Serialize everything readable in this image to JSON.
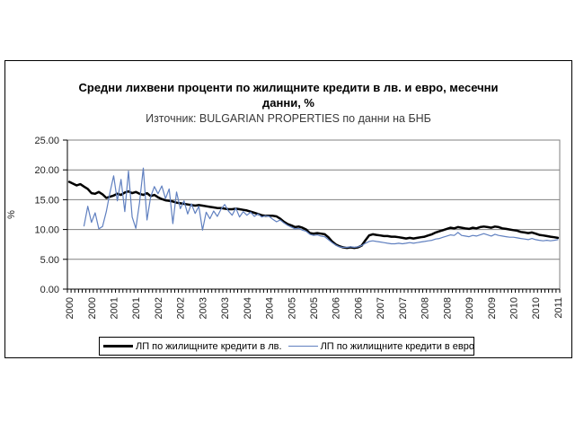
{
  "figure": {
    "title_line1": "Средни лихвени проценти по жилищните кредити в лв. и евро, месечни",
    "title_line2": "данни, %",
    "subtitle": "Източник: BULGARIAN PROPERTIES по данни на БНБ"
  },
  "chart_data": {
    "type": "line",
    "title": "Средни лихвени проценти по жилищните кредити в лв. и евро, месечни данни, %",
    "subtitle": "Източник: BULGARIAN PROPERTIES по данни на БНБ",
    "ylabel": "%",
    "ylim": [
      0,
      25
    ],
    "y_tick_step": 5,
    "y_tick_labels": [
      "25.00",
      "20.00",
      "15.00",
      "10.00",
      "5.00",
      "0.00"
    ],
    "x_unit": "month",
    "x_range": "2000-01 to 2011-01",
    "x_label_every_months": 6,
    "x_tick_labels": [
      "2000",
      "2000",
      "2001",
      "2001",
      "2002",
      "2002",
      "2003",
      "2003",
      "2004",
      "2004",
      "2005",
      "2005",
      "2006",
      "2006",
      "2007",
      "2007",
      "2008",
      "2008",
      "2009",
      "2009",
      "2010",
      "2010",
      "2011"
    ],
    "grid": true,
    "grid_color": "#808080",
    "legend_position": "bottom",
    "series": [
      {
        "name": "ЛП по жилищните кредити в лв.",
        "color": "#000000",
        "width": 2.5,
        "values": [
          18.0,
          17.7,
          17.4,
          17.6,
          17.2,
          16.8,
          16.1,
          16.0,
          16.3,
          15.9,
          15.3,
          15.5,
          15.7,
          16.0,
          15.8,
          16.2,
          16.4,
          16.1,
          16.3,
          16.0,
          15.8,
          16.1,
          15.6,
          15.8,
          15.4,
          15.1,
          14.9,
          14.8,
          14.7,
          14.5,
          14.4,
          14.3,
          14.2,
          14.1,
          14.0,
          14.1,
          14.0,
          13.9,
          13.8,
          13.7,
          13.6,
          13.6,
          13.5,
          13.4,
          13.4,
          13.5,
          13.4,
          13.3,
          13.2,
          13.0,
          12.8,
          12.6,
          12.4,
          12.3,
          12.3,
          12.3,
          12.2,
          11.8,
          11.3,
          10.9,
          10.7,
          10.4,
          10.5,
          10.3,
          10.0,
          9.4,
          9.3,
          9.4,
          9.3,
          9.2,
          8.7,
          8.0,
          7.5,
          7.2,
          7.0,
          6.9,
          7.0,
          6.9,
          7.0,
          7.3,
          8.2,
          9.0,
          9.2,
          9.1,
          9.0,
          8.9,
          8.9,
          8.8,
          8.8,
          8.7,
          8.6,
          8.5,
          8.6,
          8.5,
          8.6,
          8.7,
          8.8,
          9.0,
          9.2,
          9.5,
          9.7,
          9.9,
          10.1,
          10.3,
          10.2,
          10.4,
          10.3,
          10.2,
          10.1,
          10.3,
          10.2,
          10.4,
          10.5,
          10.4,
          10.3,
          10.5,
          10.4,
          10.2,
          10.1,
          10.0,
          9.9,
          9.8,
          9.6,
          9.5,
          9.4,
          9.5,
          9.3,
          9.1,
          9.0,
          8.9,
          8.8,
          8.7,
          8.6
        ]
      },
      {
        "name": "ЛП по жилищните кредити в евро",
        "color": "#6080C0",
        "width": 1.2,
        "values": [
          null,
          null,
          null,
          null,
          10.6,
          13.9,
          11.2,
          12.8,
          10.1,
          10.5,
          13.0,
          16.2,
          19.0,
          14.8,
          18.4,
          13.0,
          19.8,
          12.1,
          10.2,
          14.5,
          20.3,
          11.6,
          15.5,
          17.2,
          16.0,
          17.3,
          15.2,
          16.8,
          11.0,
          16.3,
          13.5,
          14.8,
          12.6,
          14.3,
          12.7,
          13.9,
          9.9,
          12.9,
          11.8,
          13.1,
          12.2,
          13.4,
          14.2,
          13.1,
          12.4,
          13.6,
          12.1,
          13.0,
          12.4,
          12.9,
          12.2,
          12.6,
          12.1,
          12.3,
          12.2,
          11.7,
          11.3,
          11.6,
          11.1,
          10.7,
          10.4,
          10.1,
          10.2,
          9.9,
          9.7,
          9.2,
          9.0,
          9.1,
          8.9,
          8.8,
          8.3,
          7.8,
          7.4,
          7.1,
          7.0,
          7.0,
          7.1,
          7.0,
          7.1,
          7.3,
          7.7,
          8.0,
          8.1,
          8.0,
          7.9,
          7.8,
          7.7,
          7.6,
          7.6,
          7.7,
          7.6,
          7.7,
          7.8,
          7.7,
          7.8,
          7.9,
          8.0,
          8.1,
          8.2,
          8.4,
          8.5,
          8.7,
          8.9,
          9.1,
          9.0,
          9.5,
          9.0,
          8.9,
          8.8,
          9.0,
          8.9,
          9.1,
          9.3,
          9.1,
          8.9,
          9.2,
          9.0,
          8.9,
          8.8,
          8.7,
          8.7,
          8.6,
          8.5,
          8.4,
          8.3,
          8.5,
          8.3,
          8.2,
          8.1,
          8.2,
          8.1,
          8.2,
          8.3
        ]
      }
    ]
  }
}
